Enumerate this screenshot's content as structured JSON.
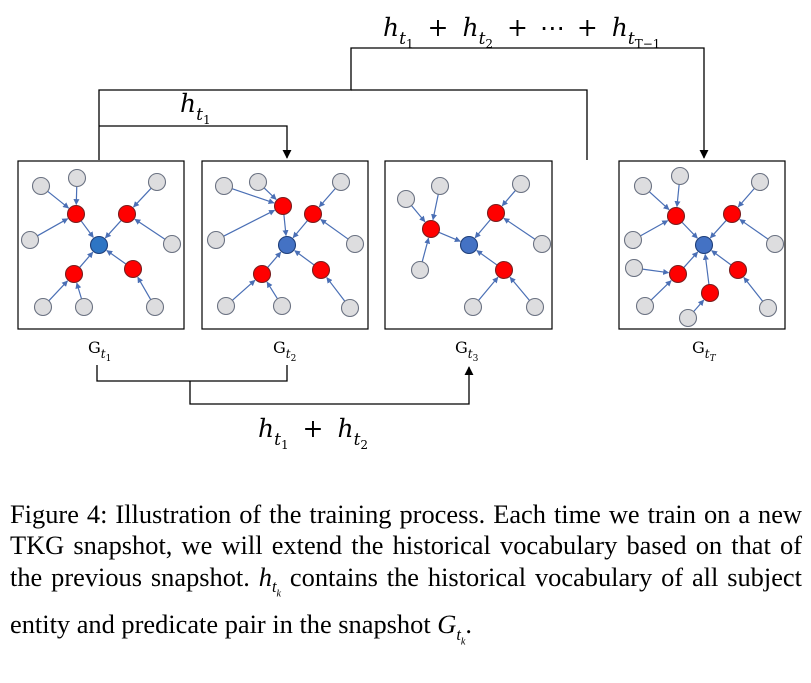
{
  "labels": {
    "top": {
      "h": "h",
      "t": "t",
      "terms": [
        "1",
        "2",
        "T−1"
      ],
      "plus": "+",
      "ellipsis": "⋯"
    },
    "mid": {
      "h": "h",
      "t": "t",
      "sub": "1"
    },
    "bottom": {
      "h": "h",
      "t": "t",
      "terms": [
        "1",
        "2"
      ],
      "plus": "+"
    },
    "ellipsis_between_panels": "......"
  },
  "panels": [
    {
      "G": "G",
      "t": "t",
      "sub": "1"
    },
    {
      "G": "G",
      "t": "t",
      "sub": "2"
    },
    {
      "G": "G",
      "t": "t",
      "sub": "3"
    },
    {
      "G": "G",
      "t": "t",
      "sub": "T"
    }
  ],
  "caption": {
    "lead": "Figure 4: Illustration of the training process. Each time we train on a new TKG snapshot, we will extend the historical vocabulary based on that of the previous snapshot.",
    "h": "h",
    "t": "t",
    "k": "k",
    "middle": "contains the historical vocabulary of all subject entity and predicate pair in the snapshot",
    "G": "G",
    "end": "."
  },
  "colors": {
    "center": "#4472c4",
    "center_first": "#2e75c4",
    "relation": "#ff0000",
    "neighbor": "#dddddf",
    "edge": "#4a6fb5"
  }
}
